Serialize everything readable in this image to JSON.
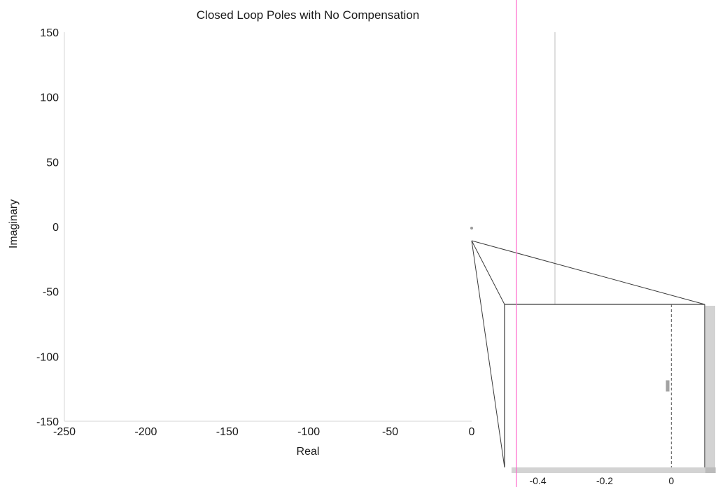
{
  "chart_data": {
    "type": "scatter",
    "title": "Closed Loop Poles with No Compensation",
    "xlabel": "Real",
    "ylabel": "Imaginary",
    "xlim": [
      -250,
      0
    ],
    "ylim": [
      -150,
      150
    ],
    "x_ticks": [
      "-250",
      "-200",
      "-150",
      "-100",
      "-50",
      "0"
    ],
    "y_ticks": [
      "150",
      "100",
      "50",
      "0",
      "-50",
      "-100",
      "-150"
    ],
    "grid": false,
    "points": [
      {
        "x": 0,
        "y": 0
      }
    ],
    "inset": {
      "type": "scatter",
      "xlim": [
        -0.5,
        0.1
      ],
      "x_ticks": [
        "-0.4",
        "-0.2",
        "0"
      ],
      "zero_reference_line": true,
      "points": [
        {
          "x": -0.01,
          "y": 0
        }
      ]
    }
  },
  "colors": {
    "axis": "#d4d4d4",
    "frame": "#3a3a3a",
    "marker": "#9a9a9a",
    "edge_line": "#ff66cc"
  }
}
